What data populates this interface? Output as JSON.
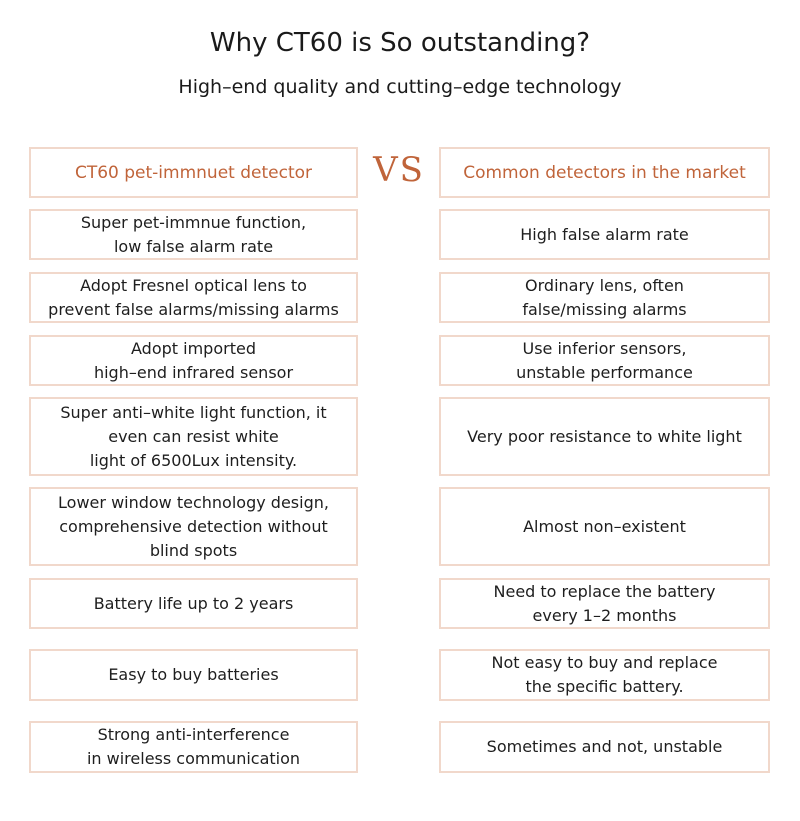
{
  "title": "Why CT60 is So outstanding?",
  "subtitle": "High–end quality and cutting–edge technology",
  "vs": "VS",
  "left_header": "CT60 pet-immnuet detector",
  "right_header": "Common detectors in the market",
  "rows": [
    {
      "left": "Super pet-immnue function,\nlow false alarm rate",
      "right": "High false alarm rate"
    },
    {
      "left": "Adopt Fresnel optical lens to\nprevent false alarms/missing alarms",
      "right": "Ordinary lens, often\nfalse/missing alarms"
    },
    {
      "left": "Adopt imported\nhigh–end infrared sensor",
      "right": "Use inferior sensors,\nunstable performance"
    },
    {
      "left": "Super anti–white light function, it\neven can resist white\nlight of 6500Lux intensity.",
      "right": "Very poor resistance to white light"
    },
    {
      "left": "Lower window technology design,\ncomprehensive detection without\nblind spots",
      "right": "Almost non–existent"
    },
    {
      "left": "Battery life up to 2 years",
      "right": "Need to replace the battery\nevery 1–2 months"
    },
    {
      "left": "Easy to buy batteries",
      "right": "Not easy to buy and replace\nthe specific battery."
    },
    {
      "left": "Strong anti-interference\nin wireless communication",
      "right": "Sometimes and not, unstable"
    }
  ]
}
